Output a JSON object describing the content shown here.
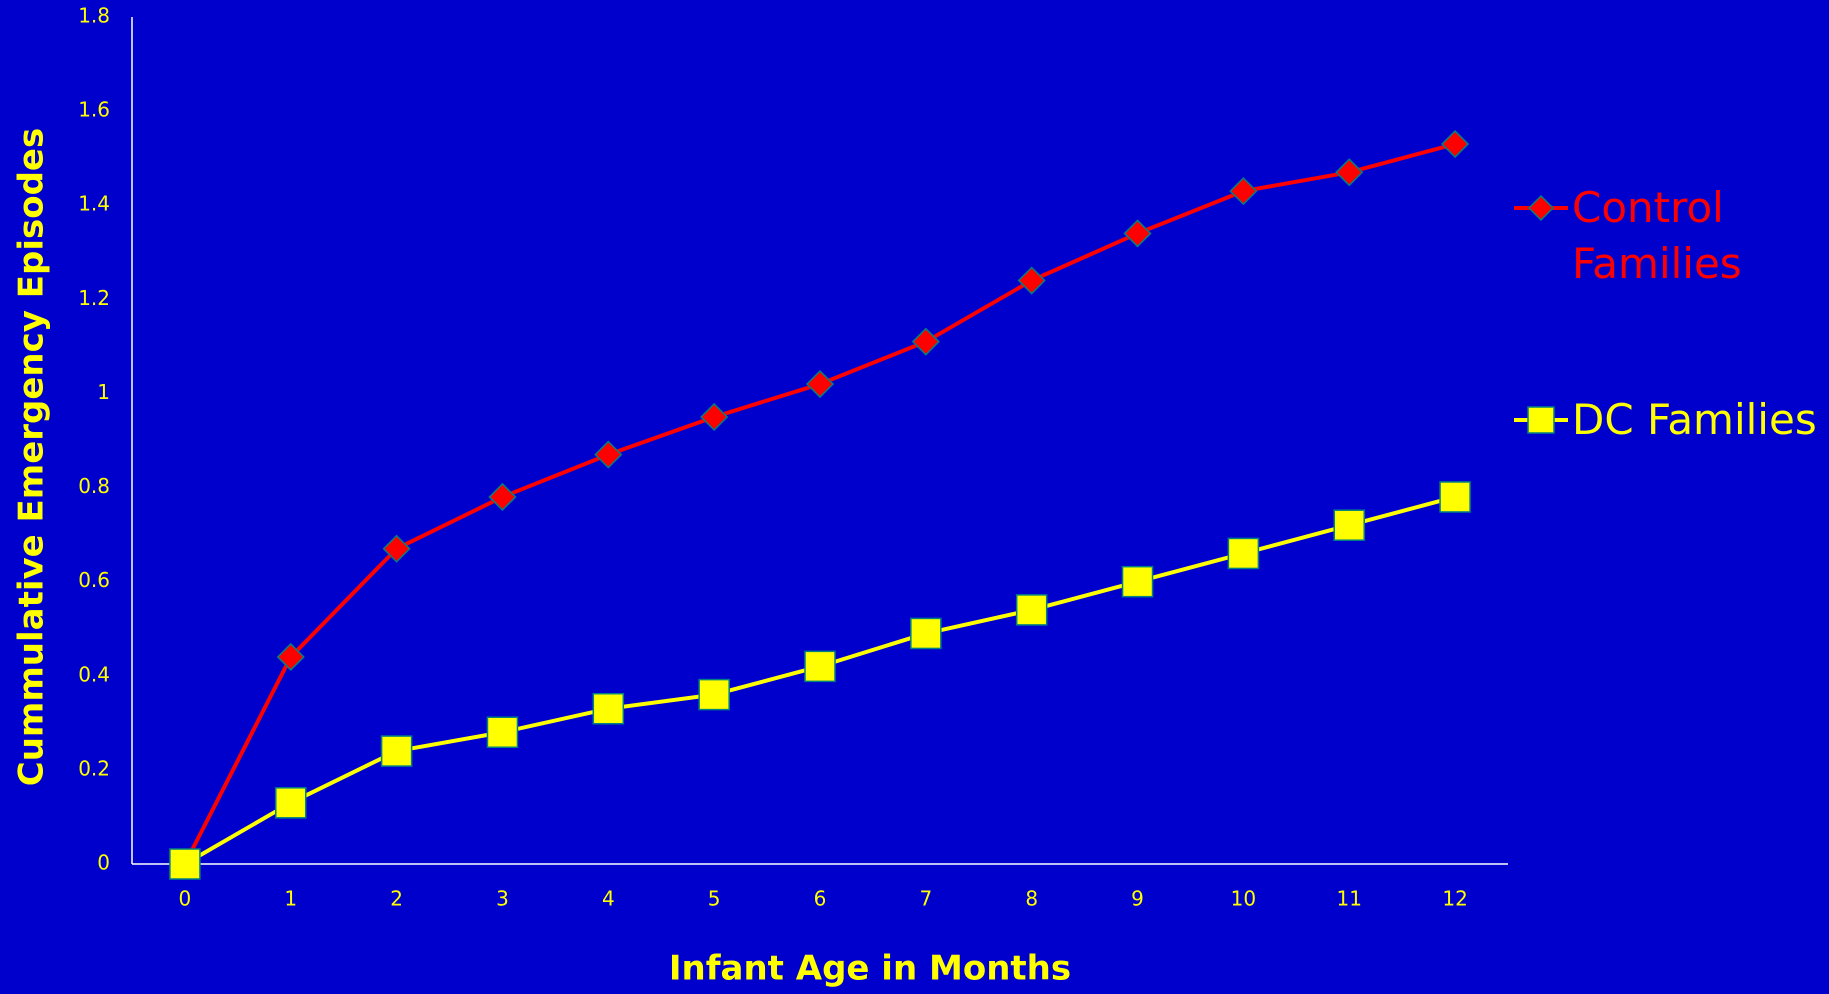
{
  "chart_data": {
    "type": "line",
    "x_label": "Infant Age in Months",
    "y_label": "Cummulative Emergency Episodes",
    "categories": [
      "0",
      "1",
      "2",
      "3",
      "4",
      "5",
      "6",
      "7",
      "8",
      "9",
      "10",
      "11",
      "12"
    ],
    "series": [
      {
        "name": "Control Families",
        "color": "#ff0000",
        "marker": "diamond",
        "values": [
          0,
          0.44,
          0.67,
          0.78,
          0.87,
          0.95,
          1.02,
          1.11,
          1.24,
          1.34,
          1.43,
          1.47,
          1.53
        ]
      },
      {
        "name": "DC Families",
        "color": "#ffff00",
        "marker": "square",
        "values": [
          0,
          0.13,
          0.24,
          0.28,
          0.33,
          0.36,
          0.42,
          0.49,
          0.54,
          0.6,
          0.66,
          0.72,
          0.78
        ]
      }
    ],
    "ylim": [
      0,
      1.8
    ],
    "yticks": [
      0,
      0.2,
      0.4,
      0.6,
      0.8,
      1,
      1.2,
      1.4,
      1.6,
      1.8
    ],
    "grid": false,
    "legend": "right"
  }
}
